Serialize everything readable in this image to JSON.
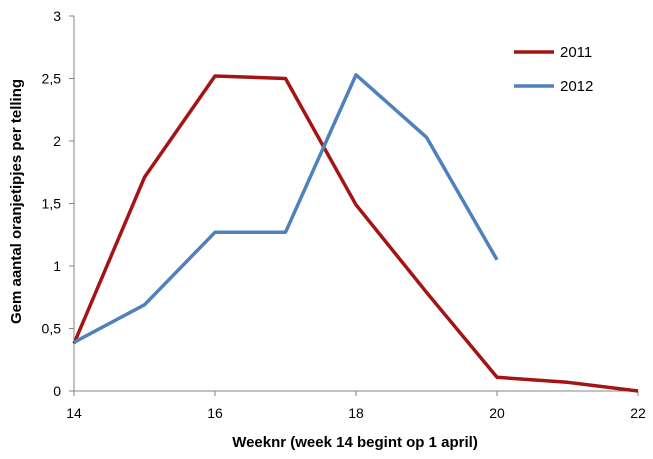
{
  "chart_data": {
    "type": "line",
    "xlabel": "Weeknr (week 14 begint op 1 april)",
    "ylabel": "Gem aantal oranjetipjes per telling",
    "xlim": [
      14,
      22
    ],
    "ylim": [
      0,
      3
    ],
    "x_ticks": [
      14,
      16,
      18,
      20,
      22
    ],
    "x_tick_labels": [
      "14",
      "16",
      "18",
      "20",
      "22"
    ],
    "y_ticks": [
      0,
      0.5,
      1,
      1.5,
      2,
      2.5,
      3
    ],
    "y_tick_labels": [
      "0",
      "0,5",
      "1",
      "1,5",
      "2",
      "2,5",
      "3"
    ],
    "grid": false,
    "legend_position": "top-right",
    "series": [
      {
        "name": "2011",
        "color": "#A31515",
        "x": [
          14,
          15,
          16,
          17,
          18,
          19,
          20,
          21,
          22
        ],
        "values": [
          0.38,
          1.71,
          2.52,
          2.5,
          1.49,
          0.79,
          0.11,
          0.07,
          0.0
        ]
      },
      {
        "name": "2012",
        "color": "#4F81BD",
        "x": [
          14,
          15,
          16,
          17,
          18,
          19,
          20
        ],
        "values": [
          0.39,
          0.69,
          1.27,
          1.27,
          2.53,
          2.03,
          1.05
        ]
      }
    ]
  }
}
